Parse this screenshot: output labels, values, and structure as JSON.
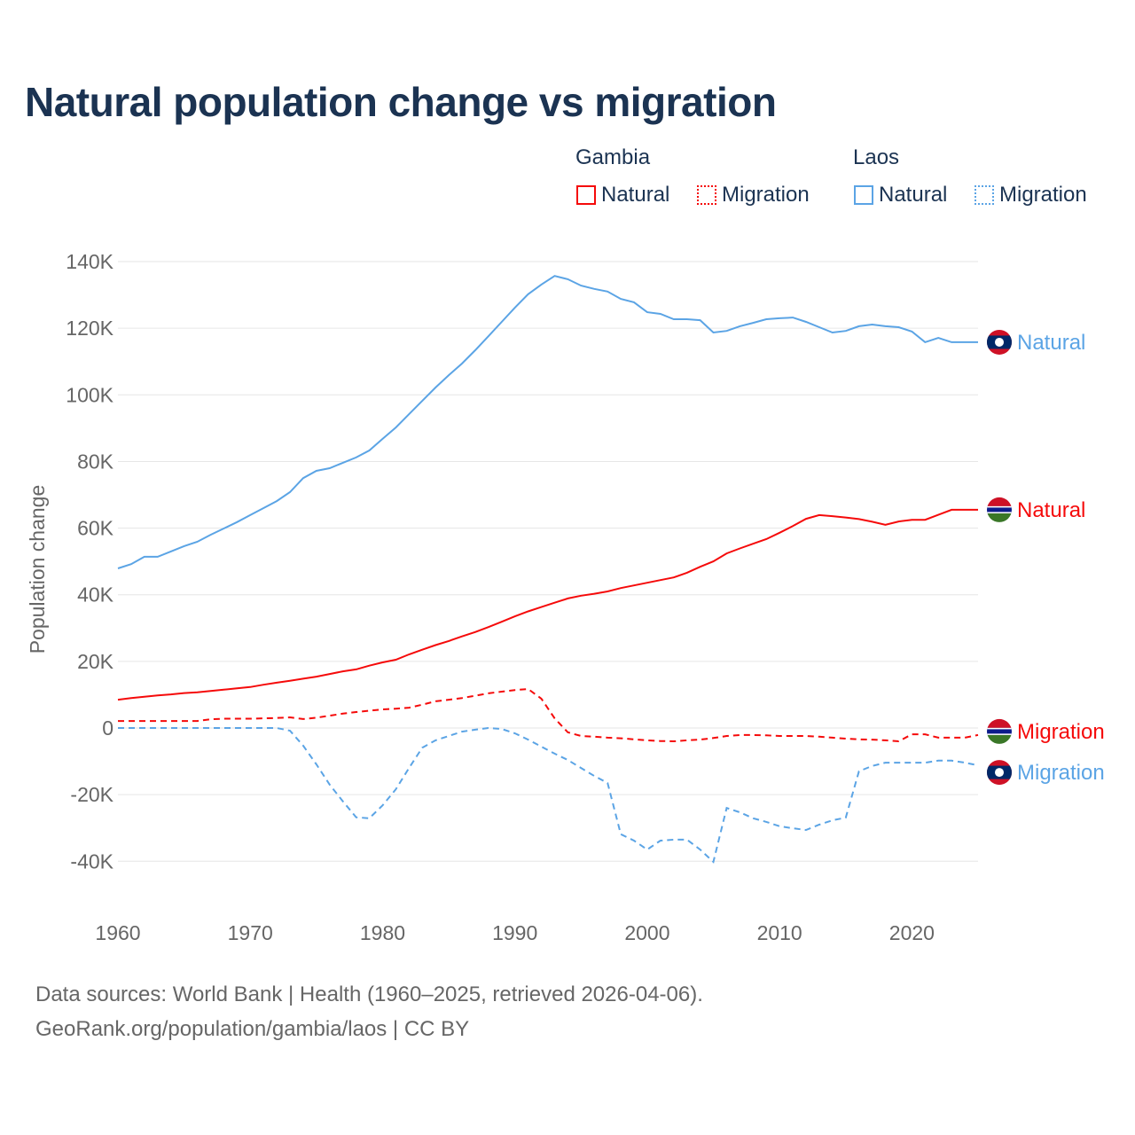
{
  "chart_data": {
    "type": "line",
    "title": "Natural population change vs migration",
    "ylabel": "Population change",
    "xlabel": "",
    "ylim": [
      -50000,
      140000
    ],
    "xlim": [
      1960,
      2025
    ],
    "grid": true,
    "yticks": [
      {
        "v": 140000,
        "label": "140K"
      },
      {
        "v": 120000,
        "label": "120K"
      },
      {
        "v": 100000,
        "label": "100K"
      },
      {
        "v": 80000,
        "label": "80K"
      },
      {
        "v": 60000,
        "label": "60K"
      },
      {
        "v": 40000,
        "label": "40K"
      },
      {
        "v": 20000,
        "label": "20K"
      },
      {
        "v": 0,
        "label": "0"
      },
      {
        "v": -20000,
        "label": "-20K"
      },
      {
        "v": -40000,
        "label": "-40K"
      }
    ],
    "xticks": [
      1960,
      1970,
      1980,
      1990,
      2000,
      2010,
      2020
    ],
    "legend": {
      "placement": "top-right",
      "groups": [
        {
          "name": "Gambia",
          "items": [
            "Natural",
            "Migration"
          ]
        },
        {
          "name": "Laos",
          "items": [
            "Natural",
            "Migration"
          ]
        }
      ]
    },
    "x": [
      1960,
      1961,
      1962,
      1963,
      1964,
      1965,
      1966,
      1967,
      1968,
      1969,
      1970,
      1971,
      1972,
      1973,
      1974,
      1975,
      1976,
      1977,
      1978,
      1979,
      1980,
      1981,
      1982,
      1983,
      1984,
      1985,
      1986,
      1987,
      1988,
      1989,
      1990,
      1991,
      1992,
      1993,
      1994,
      1995,
      1996,
      1997,
      1998,
      1999,
      2000,
      2001,
      2002,
      2003,
      2004,
      2005,
      2006,
      2007,
      2008,
      2009,
      2010,
      2011,
      2012,
      2013,
      2014,
      2015,
      2016,
      2017,
      2018,
      2019,
      2020,
      2021,
      2022,
      2023,
      2024,
      2025
    ],
    "series": [
      {
        "name": "Laos Natural",
        "country": "Laos",
        "kind": "Natural",
        "color": "#5ba4e5",
        "dash": false,
        "end_label": "Natural",
        "values": [
          47.9,
          49.2,
          51.4,
          51.4,
          53,
          54.6,
          55.9,
          58,
          59.9,
          61.8,
          63.9,
          66,
          68.1,
          70.8,
          75,
          77.2,
          78,
          79.6,
          81.2,
          83.3,
          86.8,
          90.2,
          94.2,
          98.2,
          102.2,
          105.9,
          109.4,
          113.4,
          117.6,
          121.9,
          126.2,
          130.2,
          133.1,
          135.7,
          134.7,
          132.8,
          131.8,
          131,
          128.8,
          127.8,
          124.8,
          124.3,
          122.7,
          122.7,
          122.4,
          118.7,
          119.2,
          120.6,
          121.6,
          122.7,
          123,
          123.2,
          121.9,
          120.3,
          118.7,
          119.2,
          120.6,
          121.1,
          120.6,
          120.3,
          119,
          115.8,
          117.1,
          115.8,
          115.8,
          115.8
        ]
      },
      {
        "name": "Gambia Natural",
        "country": "Gambia",
        "kind": "Natural",
        "color": "#f50a0a",
        "dash": false,
        "end_label": "Natural",
        "values": [
          8.5,
          9,
          9.4,
          9.8,
          10.1,
          10.5,
          10.7,
          11.1,
          11.5,
          11.9,
          12.3,
          13,
          13.6,
          14.2,
          14.8,
          15.4,
          16.2,
          17,
          17.6,
          18.7,
          19.7,
          20.5,
          22.1,
          23.5,
          24.9,
          26.1,
          27.5,
          28.8,
          30.3,
          31.9,
          33.5,
          35,
          36.3,
          37.6,
          38.9,
          39.7,
          40.3,
          41,
          42,
          42.8,
          43.6,
          44.4,
          45.2,
          46.6,
          48.4,
          50,
          52.4,
          53.9,
          55.3,
          56.7,
          58.6,
          60.6,
          62.8,
          63.9,
          63.6,
          63.2,
          62.7,
          61.9,
          61,
          62,
          62.5,
          62.5,
          64,
          65.5,
          65.5,
          65.5
        ]
      },
      {
        "name": "Gambia Migration",
        "country": "Gambia",
        "kind": "Migration",
        "color": "#f50a0a",
        "dash": true,
        "end_label": "Migration",
        "values": [
          2.1,
          2.1,
          2.1,
          2.1,
          2.1,
          2.1,
          2.1,
          2.6,
          2.8,
          2.8,
          2.8,
          2.9,
          3,
          3.2,
          2.7,
          3.1,
          3.7,
          4.3,
          4.8,
          5.2,
          5.6,
          5.8,
          6.1,
          7,
          8,
          8.5,
          9,
          9.7,
          10.4,
          10.9,
          11.4,
          11.7,
          8.8,
          2.9,
          -1.3,
          -2.4,
          -2.6,
          -2.9,
          -3.1,
          -3.4,
          -3.7,
          -3.9,
          -4,
          -3.7,
          -3.5,
          -3,
          -2.4,
          -2.1,
          -2.1,
          -2.2,
          -2.4,
          -2.4,
          -2.4,
          -2.6,
          -2.9,
          -3.2,
          -3.4,
          -3.5,
          -3.7,
          -4,
          -1.9,
          -1.9,
          -2.9,
          -2.9,
          -2.9,
          -2.1
        ]
      },
      {
        "name": "Laos Migration",
        "country": "Laos",
        "kind": "Migration",
        "color": "#5ba4e5",
        "dash": true,
        "end_label": "Migration",
        "values": [
          0,
          0,
          0,
          0,
          0,
          0,
          0,
          0,
          0,
          0,
          0,
          0,
          0,
          -0.8,
          -5.3,
          -10.9,
          -17,
          -22,
          -26.8,
          -27.1,
          -23.2,
          -18.4,
          -12,
          -5.9,
          -3.7,
          -2.4,
          -1.1,
          -0.5,
          0,
          -0.3,
          -1.6,
          -3.5,
          -5.6,
          -7.7,
          -9.6,
          -12,
          -14.4,
          -16.5,
          -31.9,
          -33.8,
          -36.5,
          -33.8,
          -33.5,
          -33.5,
          -36.5,
          -40.2,
          -24,
          -25.3,
          -27.1,
          -28.2,
          -29.5,
          -30.1,
          -30.6,
          -29,
          -27.7,
          -26.9,
          -13,
          -11.4,
          -10.4,
          -10.4,
          -10.4,
          -10.4,
          -9.8,
          -9.8,
          -10.4,
          -11.2
        ]
      }
    ],
    "value_unit": "thousands"
  },
  "legend": {
    "gambia": "Gambia",
    "laos": "Laos",
    "natural": "Natural",
    "migration": "Migration"
  },
  "footer": {
    "line1": "Data sources: World Bank | Health (1960–2025, retrieved 2026-04-06).",
    "line2": "GeoRank.org/population/gambia/laos | CC BY"
  }
}
